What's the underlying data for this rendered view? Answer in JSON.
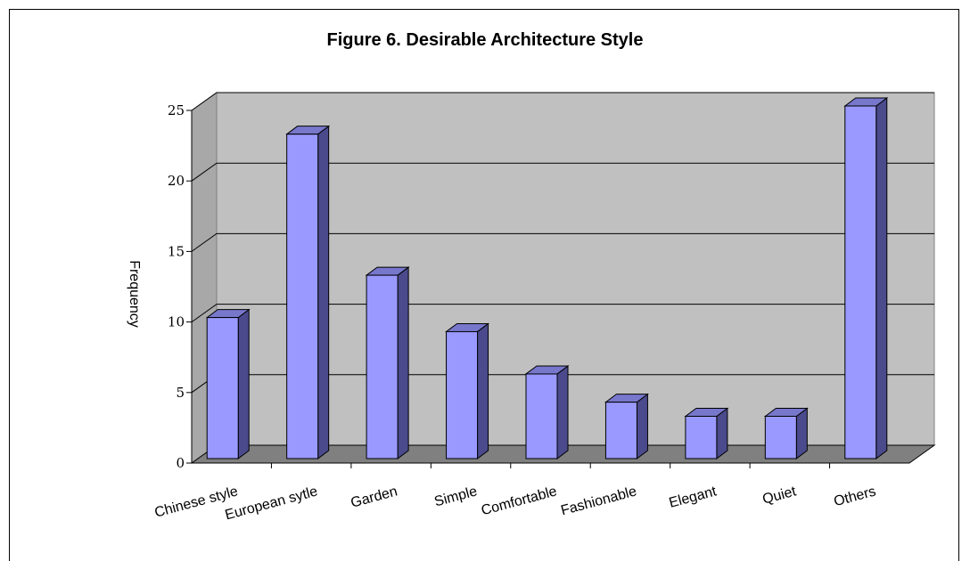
{
  "chart_data": {
    "type": "bar",
    "title": "Figure 6. Desirable Architecture Style",
    "ylabel": "Frequency",
    "xlabel": "",
    "categories": [
      "Chinese style",
      "European sytle",
      "Garden",
      "Simple",
      "Comfortable",
      "Fashionable",
      "Elegant",
      "Quiet",
      "Others"
    ],
    "values": [
      10,
      23,
      13,
      9,
      6,
      4,
      3,
      3,
      25
    ],
    "ylim": [
      0,
      25
    ],
    "yticks": [
      "0",
      "5",
      "10",
      "15",
      "20",
      "25"
    ],
    "grid": true,
    "style": "3d-bar",
    "colors": {
      "bar_front": "#9999ff",
      "bar_side": "#4a4a8c",
      "bar_top": "#7777cc",
      "wall": "#c0c0c0",
      "floor": "#808080"
    }
  }
}
